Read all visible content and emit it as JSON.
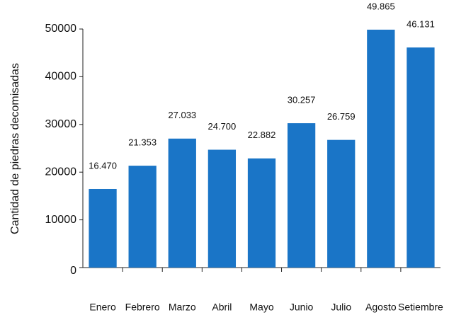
{
  "chart_data": {
    "type": "bar",
    "y_label": "Cantidad de piedras decomisadas",
    "categories": [
      "Enero",
      "Febrero",
      "Marzo",
      "Abril",
      "Mayo",
      "Junio",
      "Julio",
      "Agosto",
      "Setiembre"
    ],
    "values": [
      16470,
      21353,
      27033,
      24700,
      22882,
      30257,
      26759,
      49865,
      46131
    ],
    "value_labels": [
      "16.470",
      "21.353",
      "27.033",
      "24.700",
      "22.882",
      "30.257",
      "26.759",
      "49.865",
      "46.131"
    ],
    "color": "#1a75c7",
    "ylim": [
      0,
      50000
    ],
    "yticks": [
      0,
      10000,
      20000,
      30000,
      40000,
      50000
    ],
    "grid": false
  }
}
